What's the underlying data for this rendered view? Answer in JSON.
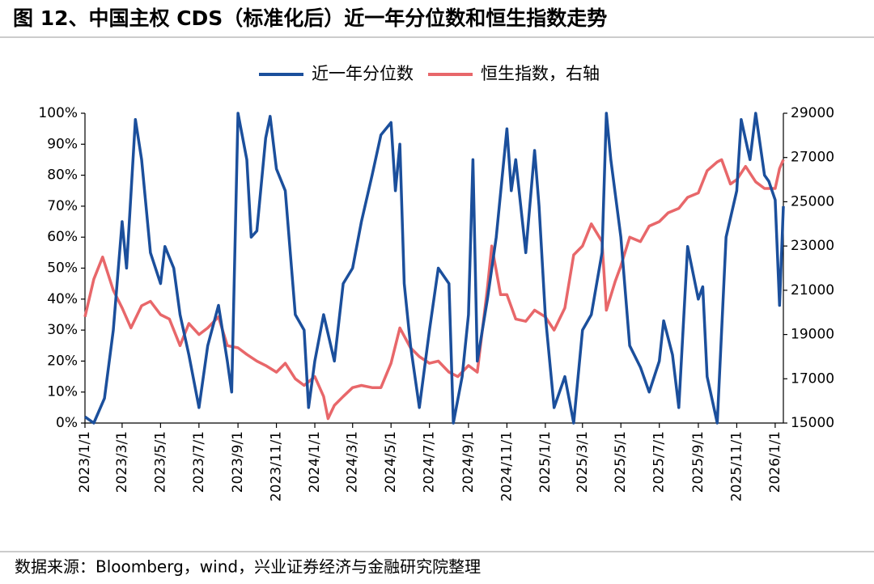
{
  "chart_data": {
    "type": "line",
    "title": "图 12、中国主权 CDS（标准化后）近一年分位数和恒生指数走势",
    "source": "数据来源：Bloomberg，wind，兴业证券经济与金融研究院整理",
    "xlim": [
      "2023/1/1",
      "2026/1/14"
    ],
    "xticks": [
      "2023/1/1",
      "2023/3/1",
      "2023/5/1",
      "2023/7/1",
      "2023/9/1",
      "2023/11/1",
      "2024/1/1",
      "2024/3/1",
      "2024/5/1",
      "2024/7/1",
      "2024/9/1",
      "2024/11/1",
      "2025/1/1",
      "2025/3/1",
      "2025/5/1",
      "2025/7/1",
      "2025/9/1",
      "2025/11/1",
      "2026/1/1"
    ],
    "ylim": [
      0,
      100
    ],
    "yticks": [
      {
        "value": 0,
        "label": "0%"
      },
      {
        "value": 10,
        "label": "10%"
      },
      {
        "value": 20,
        "label": "20%"
      },
      {
        "value": 30,
        "label": "30%"
      },
      {
        "value": 40,
        "label": "40%"
      },
      {
        "value": 50,
        "label": "50%"
      },
      {
        "value": 60,
        "label": "60%"
      },
      {
        "value": 70,
        "label": "70%"
      },
      {
        "value": 80,
        "label": "80%"
      },
      {
        "value": 90,
        "label": "90%"
      },
      {
        "value": 100,
        "label": "100%"
      }
    ],
    "y2lim": [
      15000,
      29000
    ],
    "y2ticks": [
      15000,
      17000,
      19000,
      21000,
      23000,
      25000,
      27000,
      29000
    ],
    "legend": "top",
    "series": [
      {
        "name": "近一年分位数",
        "color": "#1b4f9c",
        "axis": "y",
        "x": [
          "2023/1/1",
          "2023/1/15",
          "2023/2/1",
          "2023/2/15",
          "2023/3/1",
          "2023/3/8",
          "2023/3/22",
          "2023/4/1",
          "2023/4/15",
          "2023/5/1",
          "2023/5/8",
          "2023/5/22",
          "2023/6/1",
          "2023/6/15",
          "2023/7/1",
          "2023/7/15",
          "2023/8/1",
          "2023/8/15",
          "2023/8/22",
          "2023/9/1",
          "2023/9/15",
          "2023/9/22",
          "2023/10/1",
          "2023/10/15",
          "2023/10/22",
          "2023/11/1",
          "2023/11/15",
          "2023/12/1",
          "2023/12/15",
          "2023/12/22",
          "2024/1/1",
          "2024/1/15",
          "2024/2/1",
          "2024/2/15",
          "2024/3/1",
          "2024/3/15",
          "2024/4/1",
          "2024/4/15",
          "2024/5/1",
          "2024/5/8",
          "2024/5/15",
          "2024/5/22",
          "2024/6/1",
          "2024/6/15",
          "2024/7/1",
          "2024/7/15",
          "2024/8/1",
          "2024/8/8",
          "2024/8/22",
          "2024/9/1",
          "2024/9/8",
          "2024/9/15",
          "2024/10/1",
          "2024/10/15",
          "2024/11/1",
          "2024/11/8",
          "2024/11/15",
          "2024/12/1",
          "2024/12/15",
          "2024/12/22",
          "2025/1/1",
          "2025/1/15",
          "2025/2/1",
          "2025/2/15",
          "2025/3/1",
          "2025/3/15",
          "2025/4/1",
          "2025/4/8",
          "2025/4/15",
          "2025/5/1",
          "2025/5/15",
          "2025/6/1",
          "2025/6/15",
          "2025/7/1",
          "2025/7/8",
          "2025/7/22",
          "2025/8/1",
          "2025/8/15",
          "2025/9/1",
          "2025/9/8",
          "2025/9/15",
          "2025/10/1",
          "2025/10/15",
          "2025/11/1",
          "2025/11/8",
          "2025/11/22",
          "2025/12/1",
          "2025/12/15",
          "2025/12/22",
          "2026/1/1",
          "2026/1/8",
          "2026/1/14"
        ],
        "values": [
          2,
          0,
          8,
          30,
          65,
          50,
          98,
          85,
          55,
          45,
          57,
          50,
          35,
          22,
          5,
          25,
          38,
          20,
          10,
          100,
          85,
          60,
          62,
          92,
          99,
          82,
          75,
          35,
          30,
          5,
          20,
          35,
          20,
          45,
          50,
          65,
          80,
          93,
          97,
          75,
          90,
          45,
          25,
          5,
          30,
          50,
          45,
          0,
          15,
          35,
          85,
          20,
          40,
          60,
          95,
          75,
          85,
          55,
          88,
          70,
          35,
          5,
          15,
          0,
          30,
          35,
          55,
          100,
          85,
          60,
          25,
          18,
          10,
          20,
          33,
          22,
          5,
          57,
          40,
          44,
          15,
          0,
          60,
          75,
          98,
          85,
          100,
          80,
          78,
          72,
          38,
          70
        ]
      },
      {
        "name": "恒生指数，右轴",
        "color": "#e8676a",
        "axis": "y2",
        "x": [
          "2023/1/1",
          "2023/1/15",
          "2023/1/29",
          "2023/2/15",
          "2023/3/1",
          "2023/3/15",
          "2023/4/1",
          "2023/4/15",
          "2023/5/1",
          "2023/5/15",
          "2023/6/1",
          "2023/6/15",
          "2023/7/1",
          "2023/7/15",
          "2023/8/1",
          "2023/8/15",
          "2023/9/1",
          "2023/9/15",
          "2023/10/1",
          "2023/10/15",
          "2023/11/1",
          "2023/11/15",
          "2023/12/1",
          "2023/12/15",
          "2024/1/1",
          "2024/1/15",
          "2024/1/22",
          "2024/2/1",
          "2024/2/15",
          "2024/3/1",
          "2024/3/15",
          "2024/4/1",
          "2024/4/15",
          "2024/5/1",
          "2024/5/15",
          "2024/6/1",
          "2024/6/15",
          "2024/7/1",
          "2024/7/15",
          "2024/8/1",
          "2024/8/15",
          "2024/9/1",
          "2024/9/15",
          "2024/10/1",
          "2024/10/8",
          "2024/10/22",
          "2024/11/1",
          "2024/11/15",
          "2024/12/1",
          "2024/12/15",
          "2025/1/1",
          "2025/1/15",
          "2025/2/1",
          "2025/2/15",
          "2025/3/1",
          "2025/3/15",
          "2025/4/1",
          "2025/4/8",
          "2025/4/22",
          "2025/5/1",
          "2025/5/15",
          "2025/6/1",
          "2025/6/15",
          "2025/7/1",
          "2025/7/15",
          "2025/8/1",
          "2025/8/15",
          "2025/9/1",
          "2025/9/15",
          "2025/10/1",
          "2025/10/8",
          "2025/10/22",
          "2025/11/1",
          "2025/11/15",
          "2025/12/1",
          "2025/12/15",
          "2026/1/1",
          "2026/1/8",
          "2026/1/14"
        ],
        "values": [
          19800,
          21500,
          22500,
          21000,
          20200,
          19300,
          20300,
          20500,
          19900,
          19700,
          18500,
          19500,
          19000,
          19300,
          19800,
          18500,
          18400,
          18100,
          17800,
          17600,
          17300,
          17700,
          17000,
          16700,
          17100,
          16200,
          15200,
          15800,
          16200,
          16600,
          16700,
          16600,
          16600,
          17700,
          19300,
          18400,
          18000,
          17700,
          17800,
          17300,
          17100,
          17600,
          17300,
          21100,
          23000,
          20800,
          20800,
          19700,
          19600,
          20100,
          19800,
          19200,
          20200,
          22600,
          23000,
          24000,
          23200,
          20100,
          21400,
          22100,
          23400,
          23200,
          23900,
          24100,
          24500,
          24700,
          25200,
          25400,
          26400,
          26800,
          26900,
          25800,
          26000,
          26600,
          25900,
          25600,
          25600,
          26500,
          26900
        ]
      }
    ]
  }
}
